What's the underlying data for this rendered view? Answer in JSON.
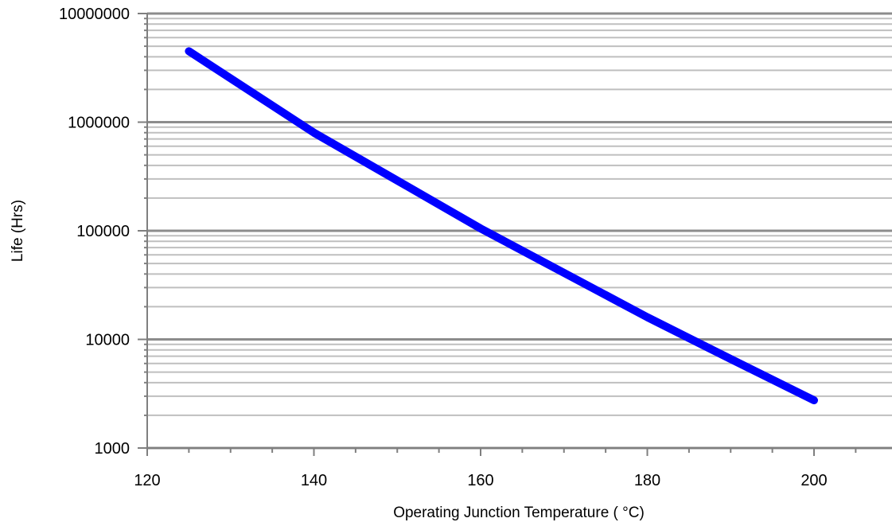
{
  "chart_data": {
    "type": "line",
    "title": "",
    "xlabel": "Operating Junction Temperature (  °C)",
    "ylabel": "Life (Hrs)",
    "xlim": [
      120,
      210
    ],
    "ylim": [
      1000,
      10000000
    ],
    "y_scale": "log",
    "x_ticks": [
      120,
      140,
      160,
      180,
      200
    ],
    "x_tick_labels": [
      "120",
      "140",
      "160",
      "180",
      "200"
    ],
    "y_ticks": [
      1000,
      10000,
      100000,
      1000000,
      10000000
    ],
    "y_tick_labels": [
      "1000",
      "10000",
      "100000",
      "1000000",
      "10000000"
    ],
    "grid": true,
    "legend": "none",
    "series": [
      {
        "color": "#0000ff",
        "x": [
          125,
          140,
          150,
          160,
          170,
          180,
          190,
          200
        ],
        "y": [
          4500000,
          800000,
          290000,
          105000,
          41000,
          16000,
          6600,
          2750
        ]
      }
    ]
  }
}
